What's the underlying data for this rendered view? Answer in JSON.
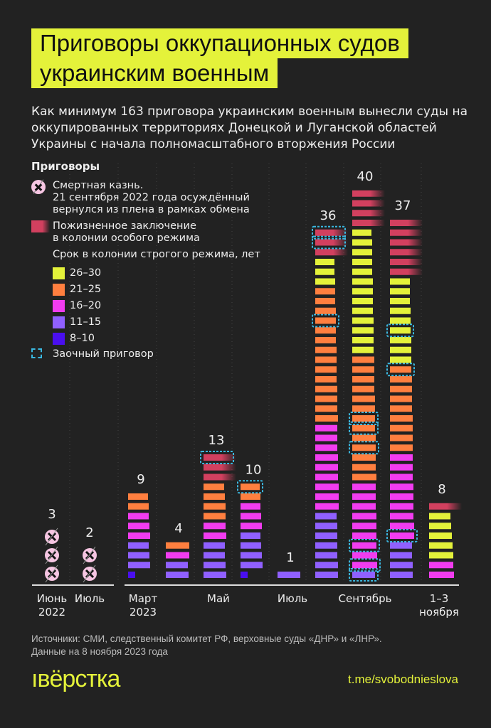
{
  "title": {
    "line1": "Приговоры оккупационных судов",
    "line2": "украинским военным"
  },
  "subtitle": "Как минимум 163 приговора украинским военным вынесли суды на оккупированных территориях Донецкой и Луганской областей Украины с начала полномасштабного вторжения России",
  "legend": {
    "heading": "Приговоры",
    "death": "Смертная казнь.\n21 сентября 2022 года осуждённый\nвернулся из плена в рамках обмена",
    "life": "Пожизненное заключение\nв колонии особого режима",
    "term_heading": "Срок в колонии строгого режима, лет",
    "terms": [
      {
        "key": "y",
        "label": "26–30",
        "color": "#e4f23a"
      },
      {
        "key": "o",
        "label": "21–25",
        "color": "#ff7f3f"
      },
      {
        "key": "p",
        "label": "16–20",
        "color": "#f23cf0"
      },
      {
        "key": "v",
        "label": "11–15",
        "color": "#9060ff"
      },
      {
        "key": "d",
        "label": "8–10",
        "color": "#4a0ff0"
      }
    ],
    "absentia": "Заочный приговор"
  },
  "colors": {
    "life": "#d2405f",
    "death": "#f6c5e2",
    "absentia_border": "#3bb8e0",
    "accent": "#e4f23a"
  },
  "chart_data": {
    "type": "bar",
    "stacked": true,
    "note": "Each column lists sentences bottom-to-top; * marks in absentia",
    "columns": [
      {
        "label": "Июнь\n2022",
        "total": "3",
        "sentences": [
          "x",
          "x",
          "x"
        ]
      },
      {
        "label": "Июль",
        "total": "2",
        "sentences": [
          "x",
          "x"
        ]
      },
      {
        "label": "Март\n2023",
        "total": "9",
        "sentences": [
          "d",
          "v",
          "v",
          "v",
          "p",
          "p",
          "p",
          "o",
          "o"
        ]
      },
      {
        "label": "",
        "total": "4",
        "sentences": [
          "v",
          "v",
          "p",
          "o"
        ]
      },
      {
        "label": "Май",
        "total": "13",
        "sentences": [
          "v",
          "v",
          "v",
          "v",
          "p",
          "p",
          "o",
          "o",
          "o",
          "o",
          "l",
          "l",
          "l*"
        ]
      },
      {
        "label": "",
        "total": "10",
        "sentences": [
          "d",
          "v",
          "v",
          "v",
          "v",
          "p",
          "p",
          "p",
          "o",
          "o*"
        ]
      },
      {
        "label": "Июль",
        "total": "1",
        "sentences": [
          "v"
        ]
      },
      {
        "label": "",
        "total": "36",
        "sentences": [
          "v",
          "v",
          "v",
          "v",
          "v",
          "v",
          "v",
          "p",
          "p",
          "p",
          "p",
          "p",
          "p",
          "p",
          "p",
          "p",
          "o",
          "o",
          "o",
          "o",
          "o",
          "o",
          "o",
          "o",
          "o",
          "o",
          "o*",
          "o",
          "o",
          "o",
          "y",
          "y",
          "y",
          "l",
          "l*",
          "l*"
        ]
      },
      {
        "label": "Сентябрь",
        "total": "40",
        "sentences": [
          "v*",
          "p*",
          "p",
          "p*",
          "p",
          "p",
          "p",
          "p",
          "p",
          "p",
          "o",
          "o",
          "o",
          "o*",
          "o",
          "o*",
          "o*",
          "o",
          "o",
          "o",
          "o",
          "o",
          "o",
          "y",
          "y",
          "y",
          "y",
          "y",
          "y",
          "y",
          "y",
          "y",
          "y",
          "y",
          "y",
          "y",
          "l",
          "l",
          "l",
          "l"
        ]
      },
      {
        "label": "",
        "total": "37",
        "sentences": [
          "v",
          "v",
          "v",
          "v",
          "p*",
          "p",
          "p",
          "p",
          "p",
          "p",
          "p",
          "p",
          "p",
          "o",
          "o",
          "o",
          "o",
          "o",
          "o",
          "o",
          "o",
          "o*",
          "y",
          "y",
          "y",
          "y*",
          "y",
          "y",
          "y",
          "y",
          "y",
          "l",
          "l",
          "l",
          "l",
          "l",
          "l"
        ]
      },
      {
        "label": "1–3\nноября",
        "total": "8",
        "sentences": [
          "p",
          "p",
          "y",
          "y",
          "y",
          "y",
          "y",
          "l"
        ]
      }
    ]
  },
  "footer": {
    "sources": "Источники: СМИ, следственный комитет РФ, верховные суды «ДНР» и «ЛНР».",
    "date": "Данные на 8 ноября 2023 года",
    "logo": "ıвёрстка",
    "link": "t.me/svobodnieslova"
  }
}
